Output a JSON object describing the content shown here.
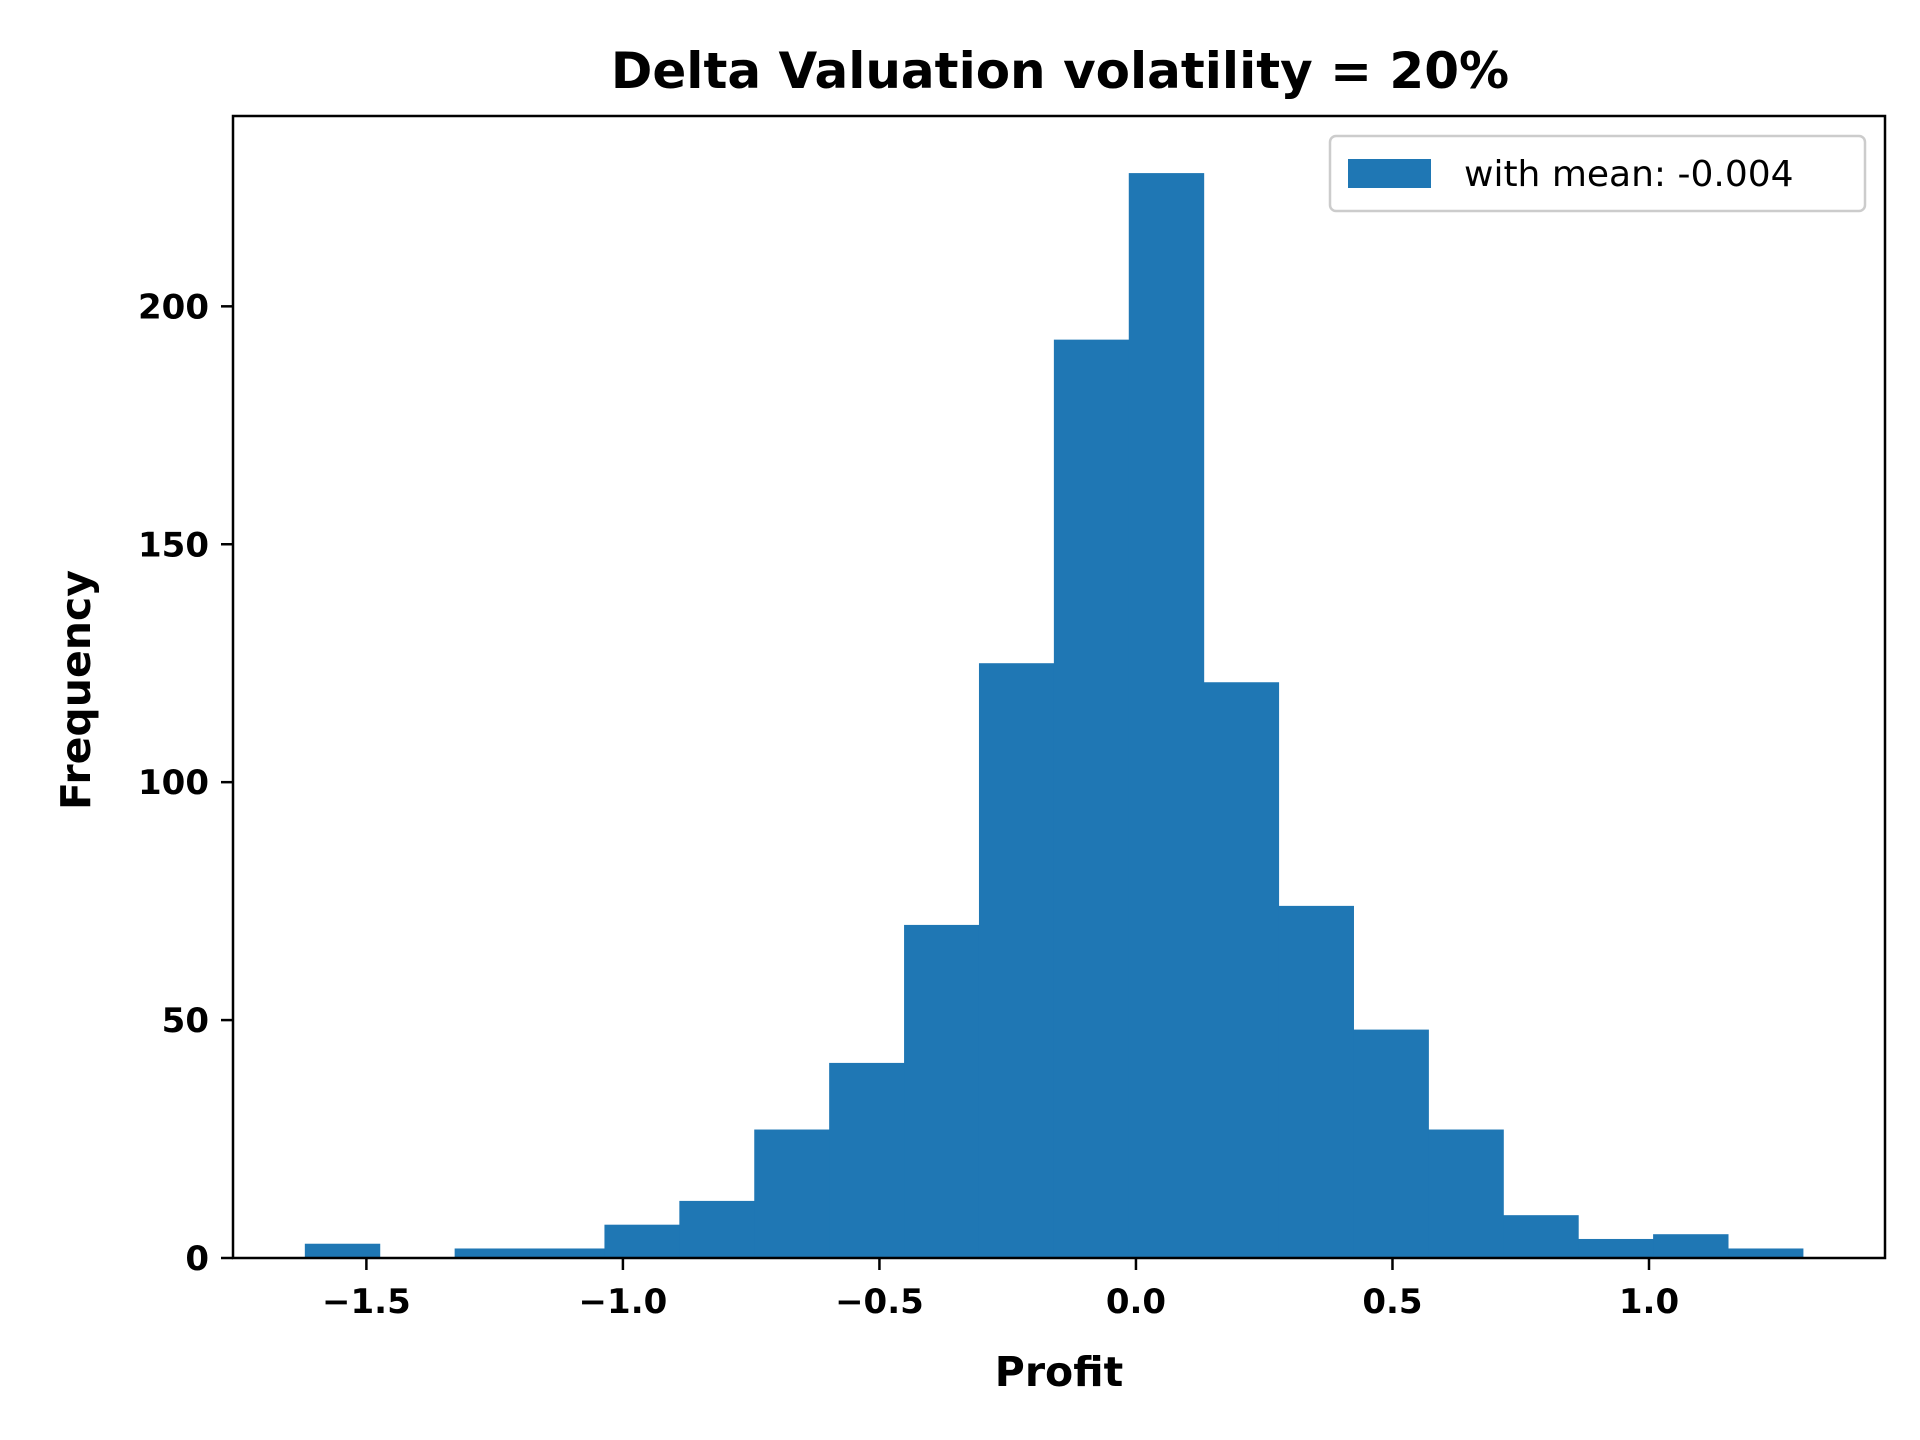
{
  "chart_data": {
    "type": "bar",
    "title": "Delta Valuation volatility = 20%",
    "xlabel": "Profit",
    "ylabel": "Frequency",
    "xlim": [
      -1.76,
      1.46
    ],
    "ylim": [
      0,
      240
    ],
    "xticks": [
      -1.5,
      -1.0,
      -0.5,
      0.0,
      0.5,
      1.0
    ],
    "xtick_labels": [
      "−1.5",
      "−1.0",
      "−0.5",
      "0.0",
      "0.5",
      "1.0"
    ],
    "yticks": [
      0,
      50,
      100,
      150,
      200
    ],
    "ytick_labels": [
      "0",
      "50",
      "100",
      "150",
      "200"
    ],
    "grid": false,
    "legend_position": "top-right",
    "series": [
      {
        "name": "with mean: -0.004",
        "color": "#1f77b4",
        "bin_edges": [
          -1.62,
          -1.474,
          -1.328,
          -1.182,
          -1.036,
          -0.89,
          -0.744,
          -0.598,
          -0.452,
          -0.306,
          -0.16,
          -0.014,
          0.132,
          0.278,
          0.424,
          0.57,
          0.716,
          0.862,
          1.008,
          1.154,
          1.3
        ],
        "values": [
          3,
          0,
          2,
          2,
          7,
          12,
          27,
          41,
          70,
          125,
          193,
          228,
          121,
          74,
          48,
          27,
          9,
          4,
          5,
          2
        ]
      }
    ]
  }
}
